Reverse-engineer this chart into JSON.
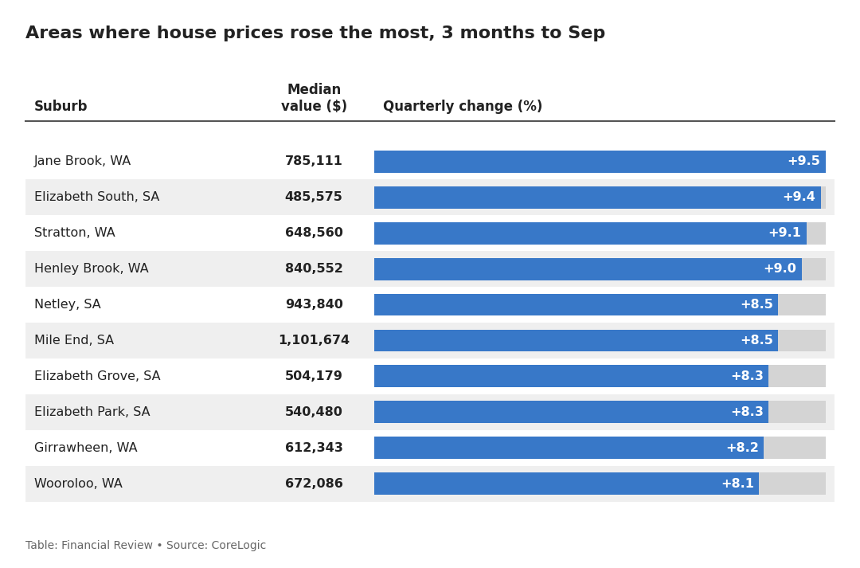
{
  "title": "Areas where house prices rose the most, 3 months to Sep",
  "subtitle": "Table: Financial Review • Source: CoreLogic",
  "col_suburb": "Suburb",
  "col_median": "Median\nvalue ($)",
  "col_quarterly": "Quarterly change (%)",
  "suburbs": [
    "Jane Brook, WA",
    "Elizabeth South, SA",
    "Stratton, WA",
    "Henley Brook, WA",
    "Netley, SA",
    "Mile End, SA",
    "Elizabeth Grove, SA",
    "Elizabeth Park, SA",
    "Girrawheen, WA",
    "Wooroloo, WA"
  ],
  "medians": [
    "785,111",
    "485,575",
    "648,560",
    "840,552",
    "943,840",
    "1,101,674",
    "504,179",
    "540,480",
    "612,343",
    "672,086"
  ],
  "changes": [
    9.5,
    9.4,
    9.1,
    9.0,
    8.5,
    8.5,
    8.3,
    8.3,
    8.2,
    8.1
  ],
  "max_change": 9.5,
  "bar_color": "#3878c8",
  "bg_row_even": "#ffffff",
  "bg_row_odd": "#efefef",
  "bar_bg_color": "#d4d4d4",
  "text_color": "#222222",
  "title_fontsize": 16,
  "header_fontsize": 12,
  "row_fontsize": 11.5,
  "subtitle_fontsize": 10
}
